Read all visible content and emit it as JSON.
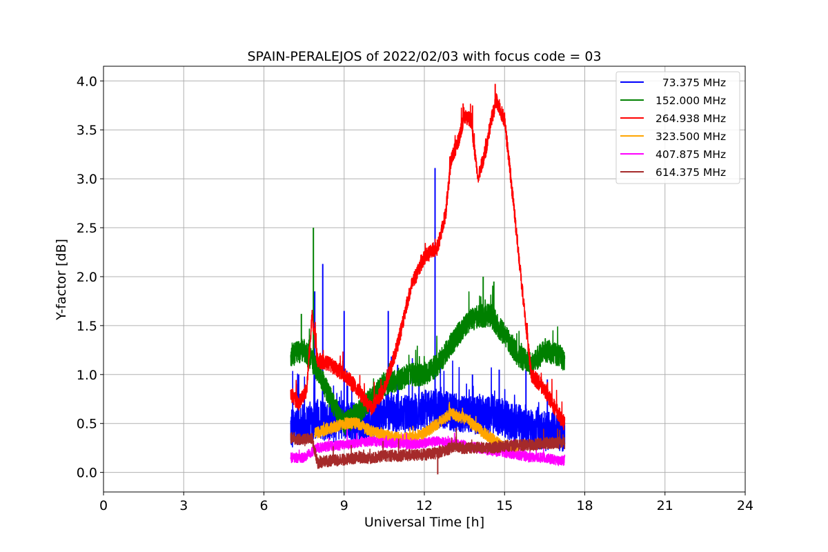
{
  "chart_data": {
    "type": "line",
    "title": "SPAIN-PERALEJOS of 2022/02/03 with focus code = 03",
    "xlabel": "Universal Time [h]",
    "ylabel": "Y-factor [dB]",
    "xlim": [
      0,
      24
    ],
    "ylim": [
      -0.2,
      4.15
    ],
    "x_ticks": [
      0,
      3,
      6,
      9,
      12,
      15,
      18,
      21,
      24
    ],
    "x_tick_labels": [
      "0",
      "3",
      "6",
      "9",
      "12",
      "15",
      "18",
      "21",
      "24"
    ],
    "y_ticks": [
      0.0,
      0.5,
      1.0,
      1.5,
      2.0,
      2.5,
      3.0,
      3.5,
      4.0
    ],
    "y_tick_labels": [
      "0.0",
      "0.5",
      "1.0",
      "1.5",
      "2.0",
      "2.5",
      "3.0",
      "3.5",
      "4.0"
    ],
    "grid": true,
    "legend_position": "top-right",
    "series": [
      {
        "name": "  73.375 MHz",
        "color": "#0000ff",
        "x": [
          7.0,
          7.5,
          8.0,
          8.5,
          9.0,
          9.5,
          10.0,
          10.5,
          11.0,
          11.5,
          12.0,
          12.5,
          13.0,
          13.5,
          14.0,
          14.5,
          15.0,
          15.5,
          16.0,
          16.5,
          17.0,
          17.25
        ],
        "y": [
          0.45,
          0.5,
          0.55,
          0.5,
          0.55,
          0.5,
          0.5,
          0.6,
          0.6,
          0.6,
          0.65,
          0.65,
          0.62,
          0.6,
          0.58,
          0.6,
          0.55,
          0.5,
          0.45,
          0.42,
          0.42,
          0.4
        ],
        "spread": 0.2,
        "spikes": [
          [
            7.9,
            1.85
          ],
          [
            8.2,
            2.13
          ],
          [
            9.0,
            1.65
          ],
          [
            10.65,
            1.65
          ],
          [
            12.4,
            3.11
          ],
          [
            7.3,
            1.0
          ],
          [
            11.0,
            1.1
          ],
          [
            11.8,
            1.0
          ],
          [
            13.8,
            1.0
          ],
          [
            14.8,
            1.05
          ],
          [
            15.8,
            1.05
          ],
          [
            16.6,
            0.95
          ]
        ]
      },
      {
        "name": "152.000 MHz",
        "color": "#008000",
        "x": [
          7.0,
          7.5,
          8.0,
          8.5,
          9.0,
          9.5,
          10.0,
          10.5,
          11.0,
          11.5,
          12.0,
          12.5,
          13.0,
          13.5,
          14.0,
          14.5,
          15.0,
          15.5,
          16.0,
          16.5,
          17.0,
          17.25
        ],
        "y": [
          1.2,
          1.25,
          1.05,
          0.75,
          0.5,
          0.6,
          0.75,
          0.9,
          0.95,
          1.0,
          1.0,
          1.1,
          1.3,
          1.5,
          1.6,
          1.6,
          1.4,
          1.2,
          1.1,
          1.25,
          1.2,
          1.15
        ],
        "spread": 0.12,
        "spikes": [
          [
            7.85,
            2.5
          ],
          [
            7.4,
            1.62
          ],
          [
            14.2,
            2.0
          ],
          [
            14.6,
            1.95
          ]
        ]
      },
      {
        "name": "264.938 MHz",
        "color": "#ff0000",
        "x": [
          7.0,
          7.3,
          7.6,
          7.8,
          8.0,
          8.5,
          9.0,
          9.5,
          10.0,
          10.5,
          11.0,
          11.5,
          12.0,
          12.5,
          12.8,
          13.0,
          13.3,
          13.5,
          13.75,
          14.0,
          14.3,
          14.5,
          14.7,
          15.0,
          15.2,
          15.5,
          15.8,
          16.0,
          16.5,
          17.0,
          17.25
        ],
        "y": [
          0.8,
          0.7,
          0.85,
          1.6,
          1.15,
          1.1,
          1.0,
          0.85,
          0.65,
          0.85,
          1.3,
          1.9,
          2.2,
          2.3,
          2.65,
          3.2,
          3.4,
          3.65,
          3.6,
          3.0,
          3.3,
          3.6,
          3.8,
          3.6,
          3.1,
          2.3,
          1.5,
          1.0,
          0.85,
          0.6,
          0.5
        ],
        "spread": 0.08,
        "spikes": [
          [
            14.65,
            3.97
          ],
          [
            13.45,
            3.77
          ],
          [
            13.8,
            3.75
          ]
        ]
      },
      {
        "name": "323.500 MHz",
        "color": "#ffa500",
        "x": [
          7.9,
          8.5,
          9.0,
          9.5,
          10.0,
          10.5,
          11.0,
          11.5,
          12.0,
          12.5,
          13.0,
          13.5,
          14.0,
          14.5,
          15.0,
          15.5
        ],
        "y": [
          0.4,
          0.45,
          0.5,
          0.5,
          0.42,
          0.38,
          0.35,
          0.35,
          0.4,
          0.5,
          0.6,
          0.55,
          0.45,
          0.35,
          0.25,
          0.2
        ],
        "spread": 0.06,
        "spikes": []
      },
      {
        "name": "407.875 MHz",
        "color": "#ff00ff",
        "x": [
          7.0,
          7.5,
          8.0,
          8.5,
          9.0,
          9.5,
          10.0,
          10.5,
          11.0,
          11.5,
          12.0,
          12.5,
          13.0,
          13.5,
          14.0,
          14.5,
          15.0,
          15.5,
          16.0,
          16.5,
          17.0,
          17.25
        ],
        "y": [
          0.15,
          0.15,
          0.25,
          0.27,
          0.28,
          0.3,
          0.32,
          0.3,
          0.3,
          0.28,
          0.3,
          0.32,
          0.3,
          0.28,
          0.25,
          0.22,
          0.2,
          0.18,
          0.15,
          0.15,
          0.12,
          0.12
        ],
        "spread": 0.05,
        "spikes": []
      },
      {
        "name": "614.375 MHz",
        "color": "#a52a2a",
        "x": [
          7.0,
          7.5,
          7.8,
          8.0,
          8.5,
          9.0,
          9.5,
          10.0,
          10.5,
          11.0,
          11.5,
          12.0,
          12.5,
          13.0,
          13.5,
          14.0,
          14.5,
          15.0,
          15.5,
          16.0,
          16.5,
          17.0,
          17.25
        ],
        "y": [
          0.35,
          0.33,
          0.35,
          0.1,
          0.12,
          0.13,
          0.15,
          0.15,
          0.17,
          0.17,
          0.18,
          0.18,
          0.2,
          0.25,
          0.25,
          0.25,
          0.25,
          0.27,
          0.28,
          0.28,
          0.3,
          0.3,
          0.3
        ],
        "spread": 0.06,
        "spikes": [
          [
            12.5,
            -0.02
          ]
        ]
      }
    ]
  }
}
